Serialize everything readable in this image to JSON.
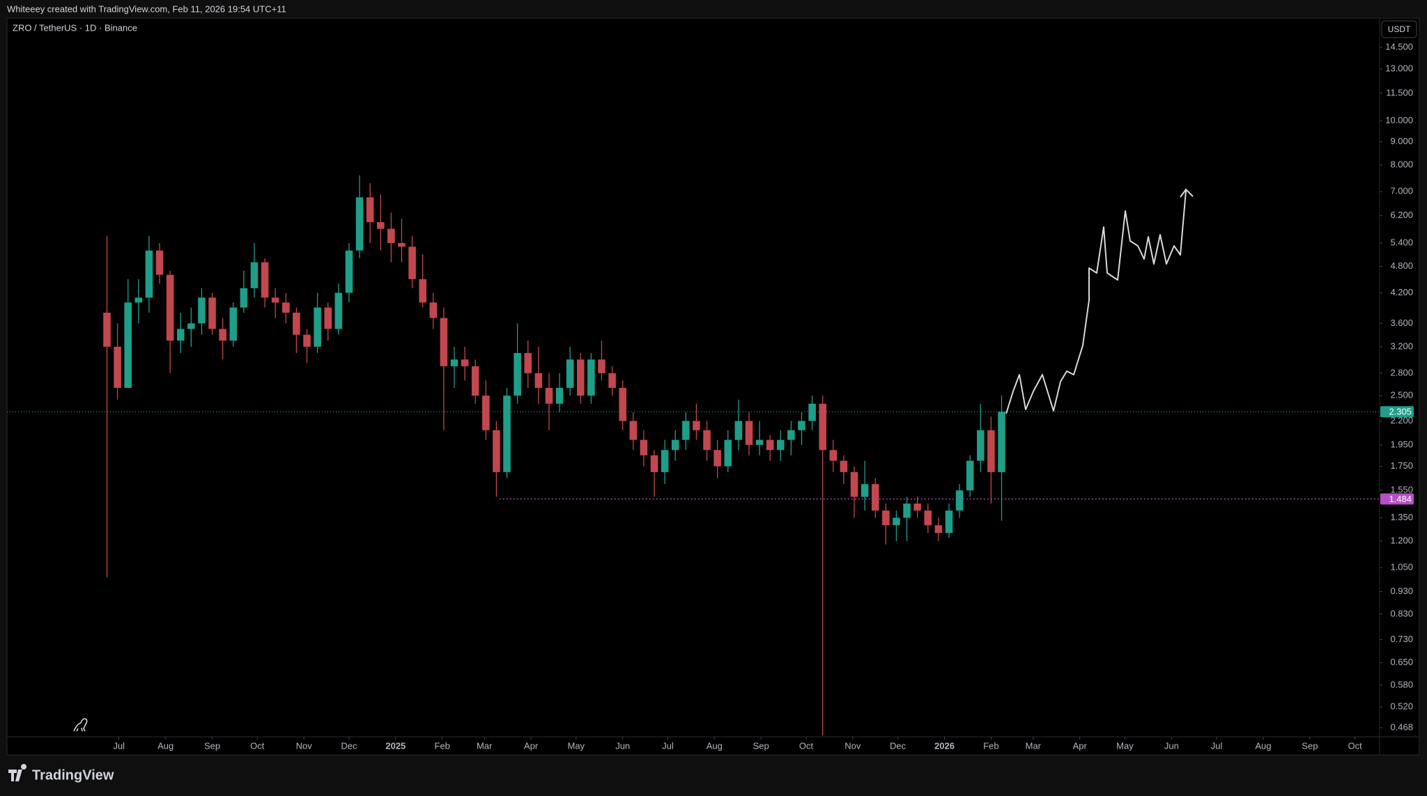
{
  "header": {
    "attribution": "Whiteeey created with TradingView.com, Feb 11, 2026 19:54 UTC+11"
  },
  "footer": {
    "brand": "TradingView"
  },
  "chart_data": {
    "type": "candlestick",
    "title": "ZRO / TetherUS · 1D · Binance",
    "currency": "USDT",
    "log_scale": true,
    "up_color": "#1f9e89",
    "down_color": "#c2474f",
    "x": [
      3,
      10,
      17,
      24,
      31,
      38,
      45,
      52,
      59,
      66,
      73,
      80,
      87,
      94,
      101,
      108,
      115,
      122,
      129,
      136,
      143,
      150,
      157,
      164,
      171,
      178,
      185,
      192,
      199,
      206,
      213,
      220,
      227,
      234,
      241,
      248,
      255,
      262,
      269,
      276,
      283,
      290,
      297,
      304,
      311,
      318,
      325,
      332,
      339,
      346,
      353,
      360,
      367,
      374,
      381,
      388,
      395,
      402,
      409,
      416,
      423,
      430,
      437,
      444,
      451,
      458,
      465,
      472,
      479,
      486,
      493,
      500,
      507,
      514,
      521,
      528,
      535,
      542,
      549,
      556,
      563,
      570,
      577,
      584,
      591,
      598
    ],
    "open": [
      3.8,
      3.2,
      2.6,
      4.0,
      4.1,
      5.2,
      4.6,
      3.3,
      3.5,
      3.6,
      4.1,
      3.5,
      3.3,
      3.9,
      4.3,
      4.9,
      4.1,
      4.0,
      3.8,
      3.4,
      3.2,
      3.9,
      3.5,
      4.2,
      5.2,
      6.8,
      6.0,
      5.8,
      5.4,
      5.3,
      4.5,
      4.0,
      3.7,
      2.9,
      3.0,
      2.9,
      2.5,
      2.1,
      1.7,
      2.5,
      3.1,
      2.8,
      2.6,
      2.4,
      2.6,
      3.0,
      2.5,
      3.0,
      2.8,
      2.6,
      2.2,
      2.0,
      1.85,
      1.7,
      1.9,
      2.0,
      2.2,
      2.1,
      1.9,
      1.75,
      2.0,
      2.2,
      1.95,
      2.0,
      1.9,
      2.0,
      2.1,
      2.2,
      2.4,
      1.9,
      1.8,
      1.7,
      1.5,
      1.6,
      1.4,
      1.3,
      1.35,
      1.45,
      1.4,
      1.3,
      1.25,
      1.4,
      1.55,
      1.8,
      2.1,
      1.7
    ],
    "high": [
      5.6,
      3.6,
      4.5,
      4.5,
      5.6,
      5.4,
      4.7,
      3.8,
      3.9,
      4.3,
      4.2,
      3.7,
      4.0,
      4.7,
      5.4,
      5.0,
      4.3,
      4.2,
      3.9,
      3.5,
      4.2,
      4.0,
      4.4,
      5.4,
      7.6,
      7.3,
      6.9,
      6.3,
      6.1,
      5.6,
      5.1,
      4.2,
      3.9,
      3.2,
      3.2,
      3.0,
      2.7,
      2.2,
      2.6,
      3.6,
      3.3,
      3.2,
      2.8,
      2.8,
      3.2,
      3.1,
      3.1,
      3.3,
      2.9,
      2.7,
      2.3,
      2.1,
      1.9,
      2.0,
      2.1,
      2.3,
      2.4,
      2.2,
      2.0,
      2.1,
      2.45,
      2.3,
      2.2,
      2.05,
      2.1,
      2.2,
      2.3,
      2.5,
      2.5,
      2.0,
      1.85,
      1.75,
      1.8,
      1.65,
      1.45,
      1.4,
      1.5,
      1.5,
      1.45,
      1.35,
      1.45,
      1.6,
      1.85,
      2.4,
      2.25,
      2.5
    ],
    "low": [
      1.0,
      2.45,
      2.7,
      3.6,
      3.8,
      4.4,
      2.8,
      3.1,
      3.2,
      3.4,
      3.4,
      3.0,
      3.2,
      3.8,
      4.1,
      3.9,
      3.7,
      3.6,
      3.1,
      2.95,
      3.1,
      3.3,
      3.4,
      4.0,
      5.0,
      5.4,
      5.2,
      4.9,
      4.9,
      4.3,
      3.9,
      3.5,
      2.1,
      2.6,
      2.7,
      2.4,
      2.0,
      1.5,
      1.65,
      2.4,
      2.6,
      2.4,
      2.1,
      2.3,
      2.5,
      2.4,
      2.4,
      2.7,
      2.5,
      2.1,
      1.9,
      1.75,
      1.5,
      1.6,
      1.8,
      1.9,
      2.0,
      1.8,
      1.65,
      1.7,
      1.9,
      1.85,
      1.85,
      1.8,
      1.8,
      1.85,
      1.95,
      2.1,
      0.45,
      1.7,
      1.6,
      1.35,
      1.4,
      1.35,
      1.18,
      1.2,
      1.2,
      1.35,
      1.25,
      1.2,
      1.22,
      1.35,
      1.5,
      1.7,
      1.45,
      1.33
    ],
    "close": [
      3.2,
      2.6,
      4.0,
      4.1,
      5.2,
      4.6,
      3.3,
      3.5,
      3.6,
      4.1,
      3.5,
      3.3,
      3.9,
      4.3,
      4.9,
      4.1,
      4.0,
      3.8,
      3.4,
      3.2,
      3.9,
      3.5,
      4.2,
      5.2,
      6.8,
      6.0,
      5.8,
      5.4,
      5.3,
      4.5,
      4.0,
      3.7,
      2.9,
      3.0,
      2.9,
      2.5,
      2.1,
      1.7,
      2.5,
      3.1,
      2.8,
      2.6,
      2.4,
      2.6,
      3.0,
      2.5,
      3.0,
      2.8,
      2.6,
      2.2,
      2.0,
      1.85,
      1.7,
      1.9,
      2.0,
      2.2,
      2.1,
      1.9,
      1.75,
      2.0,
      2.2,
      1.95,
      2.0,
      1.9,
      2.0,
      2.1,
      2.2,
      2.4,
      1.9,
      1.8,
      1.7,
      1.5,
      1.6,
      1.4,
      1.3,
      1.35,
      1.45,
      1.4,
      1.3,
      1.25,
      1.4,
      1.55,
      1.8,
      2.1,
      1.7,
      2.305
    ],
    "ylim": [
      0.447,
      16.8
    ],
    "yticks": [
      {
        "value": 14.5,
        "label": "14.500"
      },
      {
        "value": 13,
        "label": "13.000"
      },
      {
        "value": 11.5,
        "label": "11.500"
      },
      {
        "value": 10,
        "label": "10.000"
      },
      {
        "value": 9,
        "label": "9.000"
      },
      {
        "value": 8,
        "label": "8.000"
      },
      {
        "value": 7,
        "label": "7.000"
      },
      {
        "value": 6.2,
        "label": "6.200"
      },
      {
        "value": 5.4,
        "label": "5.400"
      },
      {
        "value": 4.8,
        "label": "4.800"
      },
      {
        "value": 4.2,
        "label": "4.200"
      },
      {
        "value": 3.6,
        "label": "3.600"
      },
      {
        "value": 3.2,
        "label": "3.200"
      },
      {
        "value": 2.8,
        "label": "2.800"
      },
      {
        "value": 2.5,
        "label": "2.500"
      },
      {
        "value": 2.2,
        "label": "2.200"
      },
      {
        "value": 1.95,
        "label": "1.950"
      },
      {
        "value": 1.75,
        "label": "1.750"
      },
      {
        "value": 1.55,
        "label": "1.550"
      },
      {
        "value": 1.35,
        "label": "1.350"
      },
      {
        "value": 1.2,
        "label": "1.200"
      },
      {
        "value": 1.05,
        "label": "1.050"
      },
      {
        "value": 0.93,
        "label": "0.930"
      },
      {
        "value": 0.83,
        "label": "0.830"
      },
      {
        "value": 0.73,
        "label": "0.730"
      },
      {
        "value": 0.65,
        "label": "0.650"
      },
      {
        "value": 0.58,
        "label": "0.580"
      },
      {
        "value": 0.52,
        "label": "0.520"
      },
      0.468
    ],
    "xlim": [
      -63.5,
      849.4
    ],
    "xticks": [
      {
        "value": 11,
        "label": "Jul"
      },
      {
        "value": 42,
        "label": "Aug"
      },
      {
        "value": 73,
        "label": "Sep"
      },
      {
        "value": 103,
        "label": "Oct"
      },
      {
        "value": 134,
        "label": "Nov"
      },
      {
        "value": 164,
        "label": "Dec"
      },
      {
        "value": 195,
        "label": "2025"
      },
      {
        "value": 226,
        "label": "Feb"
      },
      {
        "value": 254,
        "label": "Mar"
      },
      {
        "value": 285,
        "label": "Apr"
      },
      {
        "value": 315,
        "label": "May"
      },
      {
        "value": 346,
        "label": "Jun"
      },
      {
        "value": 376,
        "label": "Jul"
      },
      {
        "value": 407,
        "label": "Aug"
      },
      {
        "value": 438,
        "label": "Sep"
      },
      {
        "value": 468,
        "label": "Oct"
      },
      {
        "value": 499,
        "label": "Nov"
      },
      {
        "value": 529,
        "label": "Dec"
      },
      {
        "value": 560,
        "label": "2026"
      },
      {
        "value": 591,
        "label": "Feb"
      },
      {
        "value": 619,
        "label": "Mar"
      },
      {
        "value": 650,
        "label": "Apr"
      },
      {
        "value": 680,
        "label": "May"
      },
      {
        "value": 711,
        "label": "Jun"
      },
      {
        "value": 741,
        "label": "Jul"
      },
      {
        "value": 772,
        "label": "Aug"
      },
      {
        "value": 803,
        "label": "Sep"
      },
      {
        "value": 833,
        "label": "Oct"
      }
    ],
    "last_price": {
      "value": 2.305,
      "color": "#1f9e89"
    },
    "level": {
      "value": 1.484,
      "from_x": 264,
      "color": "#b84fc9"
    }
  }
}
